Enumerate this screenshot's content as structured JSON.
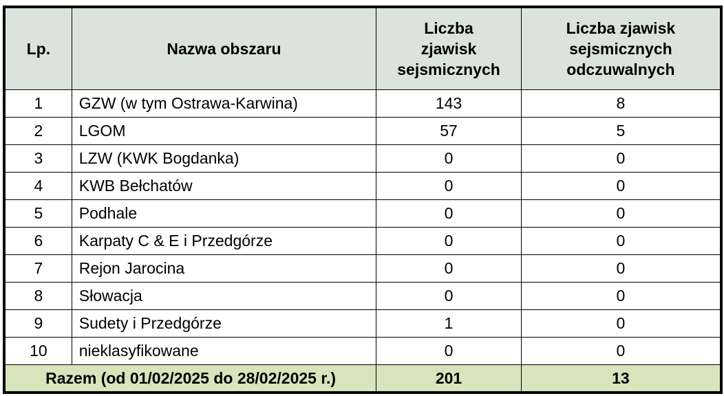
{
  "headers": [
    "Lp.",
    "Nazwa obszaru",
    "Liczba zjawisk sejsmicznych",
    "Liczba zjawisk sejsmicznych odczuwalnych"
  ],
  "rows": [
    {
      "lp": "1",
      "name": "GZW (w tym Ostrawa-Karwina)",
      "count": "143",
      "felt": "8"
    },
    {
      "lp": "2",
      "name": "LGOM",
      "count": "57",
      "felt": "5"
    },
    {
      "lp": "3",
      "name": "LZW (KWK Bogdanka)",
      "count": "0",
      "felt": "0"
    },
    {
      "lp": "4",
      "name": "KWB Bełchatów",
      "count": "0",
      "felt": "0"
    },
    {
      "lp": "5",
      "name": "Podhale",
      "count": "0",
      "felt": "0"
    },
    {
      "lp": "6",
      "name": "Karpaty C & E i Przedgórze",
      "count": "0",
      "felt": "0"
    },
    {
      "lp": "7",
      "name": "Rejon Jarocina",
      "count": "0",
      "felt": "0"
    },
    {
      "lp": "8",
      "name": "Słowacja",
      "count": "0",
      "felt": "0"
    },
    {
      "lp": "9",
      "name": "Sudety i Przedgórze",
      "count": "1",
      "felt": "0"
    },
    {
      "lp": "10",
      "name": "nieklasyfikowane",
      "count": "0",
      "felt": "0"
    }
  ],
  "total": {
    "label": "Razem (od 01/02/2025 do 28/02/2025 r.)",
    "count": "201",
    "felt": "13"
  },
  "colors": {
    "header_bg": "#dbe4dc",
    "total_bg": "#d8e4bc"
  }
}
